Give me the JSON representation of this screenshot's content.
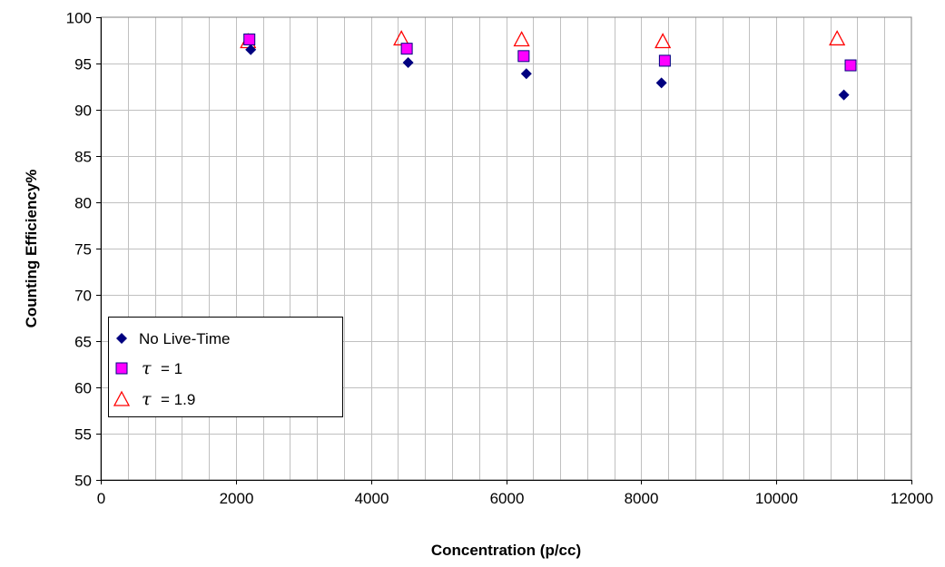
{
  "chart_data": {
    "type": "scatter",
    "title": "",
    "xlabel": "Concentration (p/cc)",
    "ylabel": "Counting Efficiency%",
    "xlim": [
      0,
      12000
    ],
    "ylim": [
      50,
      100
    ],
    "xticks": [
      0,
      2000,
      4000,
      6000,
      8000,
      10000,
      12000
    ],
    "yticks": [
      50,
      55,
      60,
      65,
      70,
      75,
      80,
      85,
      90,
      95,
      100
    ],
    "x_minor_step": 400,
    "grid": "on",
    "legend_position": "bottom-left",
    "series": [
      {
        "name": "No Live-Time",
        "legend_symbol": "",
        "legend_text": "No Live-Time",
        "marker": "diamond",
        "color": "#000080",
        "points": [
          [
            2220,
            96.5
          ],
          [
            4550,
            95.1
          ],
          [
            6300,
            93.9
          ],
          [
            8300,
            92.9
          ],
          [
            11000,
            91.6
          ]
        ]
      },
      {
        "name": "τ = 1",
        "legend_symbol": "τ",
        "legend_text": "= 1",
        "marker": "square",
        "color": "#ff00ff",
        "edge_color": "#000080",
        "points": [
          [
            2200,
            97.6
          ],
          [
            4530,
            96.6
          ],
          [
            6260,
            95.8
          ],
          [
            8350,
            95.3
          ],
          [
            11100,
            94.8
          ]
        ]
      },
      {
        "name": "τ = 1.9",
        "legend_symbol": "τ",
        "legend_text": "= 1.9",
        "marker": "triangle-open",
        "color": "#ff0000",
        "points": [
          [
            2180,
            97.4
          ],
          [
            4450,
            97.7
          ],
          [
            6230,
            97.6
          ],
          [
            8320,
            97.4
          ],
          [
            10900,
            97.7
          ]
        ]
      }
    ]
  }
}
